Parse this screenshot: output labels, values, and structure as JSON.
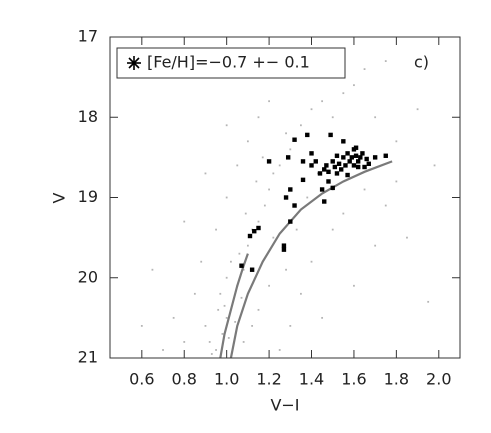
{
  "chart_data": {
    "type": "scatter",
    "xlabel": "V−I",
    "ylabel": "V",
    "annotation": "c)",
    "legend": "upper left",
    "xlim": [
      0.45,
      2.1
    ],
    "ylim": [
      21,
      17
    ],
    "xticks": [
      0.6,
      0.8,
      {
        "value": 1,
        "label": "1.0"
      },
      1.2,
      1.4,
      1.6,
      1.8,
      {
        "value": 2,
        "label": "2.0"
      }
    ],
    "yticks": [
      17,
      18,
      19,
      20,
      21
    ],
    "series": [
      {
        "name": "[Fe/H]=−0.7 +− 0.1",
        "color": "#000000",
        "x": [
          1.2,
          1.29,
          1.32,
          1.38,
          1.4,
          1.36,
          1.3,
          1.28,
          1.32,
          1.3,
          1.27,
          1.27,
          1.13,
          1.15,
          1.11,
          1.07,
          1.12,
          1.46,
          1.49,
          1.55,
          1.57,
          1.61,
          1.7,
          1.65,
          1.6,
          1.42,
          1.44,
          1.46,
          1.47,
          1.48,
          1.5,
          1.51,
          1.52,
          1.53,
          1.54,
          1.55,
          1.56,
          1.57,
          1.58,
          1.59,
          1.61,
          1.62,
          1.63,
          1.64,
          1.66,
          1.67,
          1.62,
          1.52,
          1.48,
          1.4,
          1.36,
          1.75,
          1.5,
          1.45,
          1.6
        ],
        "values": [
          18.55,
          18.5,
          18.28,
          18.22,
          18.6,
          18.78,
          18.9,
          19.0,
          19.1,
          19.3,
          19.6,
          19.65,
          19.42,
          19.38,
          19.48,
          19.85,
          19.9,
          19.05,
          18.22,
          18.3,
          18.45,
          18.38,
          18.5,
          18.62,
          18.6,
          18.55,
          18.7,
          18.65,
          18.6,
          18.68,
          18.55,
          18.62,
          18.7,
          18.58,
          18.65,
          18.5,
          18.6,
          18.72,
          18.55,
          18.5,
          18.48,
          18.55,
          18.5,
          18.45,
          18.52,
          18.58,
          18.62,
          18.48,
          18.8,
          18.45,
          18.55,
          18.48,
          18.88,
          18.9,
          18.4
        ]
      },
      {
        "color": "#b5b5b5",
        "x": [
          0.95,
          0.98,
          0.92,
          1.0,
          0.96,
          1.03,
          0.9,
          1.05,
          1.0,
          1.08,
          1.02,
          1.1,
          1.06,
          1.12,
          1.15,
          1.09,
          1.18,
          1.2,
          1.14,
          1.22,
          1.25,
          1.17,
          1.3,
          1.28,
          1.35,
          1.4,
          1.45,
          1.5,
          1.55,
          1.6,
          1.7,
          1.8,
          1.9,
          1.65,
          1.75,
          1.5,
          1.4,
          1.35,
          1.3,
          1.25,
          1.45,
          1.6,
          1.85,
          1.95,
          0.85,
          0.8,
          0.75,
          0.7,
          0.88,
          0.95,
          1.0,
          1.05,
          1.1,
          1.15,
          1.2,
          1.25,
          1.35,
          1.0,
          0.9,
          0.8,
          0.65,
          0.6,
          1.12,
          1.08,
          1.15,
          1.2,
          1.22,
          1.28,
          1.33,
          1.38,
          1.43,
          1.5,
          1.55,
          1.7,
          1.8,
          1.98,
          1.65,
          1.75,
          0.97,
          1.01,
          0.93,
          1.04,
          0.99,
          1.07
        ],
        "values": [
          20.9,
          20.7,
          20.8,
          20.5,
          20.4,
          20.3,
          20.6,
          20.1,
          20.0,
          19.9,
          19.8,
          19.6,
          19.7,
          19.4,
          19.3,
          19.2,
          19.1,
          18.9,
          18.8,
          18.7,
          18.6,
          18.5,
          18.4,
          18.2,
          18.1,
          17.9,
          17.8,
          18.0,
          17.7,
          17.6,
          18.0,
          18.3,
          17.9,
          18.9,
          19.1,
          19.4,
          19.8,
          20.2,
          20.6,
          20.9,
          20.5,
          20.1,
          19.5,
          20.3,
          20.2,
          20.8,
          20.5,
          20.9,
          19.8,
          19.4,
          19.0,
          18.6,
          18.3,
          18.0,
          17.8,
          17.5,
          17.4,
          18.1,
          18.7,
          19.3,
          19.9,
          20.6,
          20.6,
          20.8,
          20.4,
          20.1,
          19.5,
          19.9,
          19.4,
          19.0,
          18.7,
          18.9,
          19.2,
          19.6,
          18.8,
          18.6,
          17.4,
          17.3,
          20.2,
          20.75,
          20.95,
          20.55,
          20.35,
          20.25
        ]
      }
    ],
    "lines": [
      {
        "color": "#7a7a7a",
        "x": [
          0.97,
          0.99,
          1.02,
          1.05,
          1.08,
          1.1
        ],
        "values": [
          21,
          20.7,
          20.4,
          20.1,
          19.85,
          19.7
        ]
      },
      {
        "color": "#7a7a7a",
        "x": [
          1.02,
          1.05,
          1.1,
          1.17,
          1.25,
          1.35,
          1.45,
          1.55,
          1.65,
          1.78
        ],
        "values": [
          21,
          20.6,
          20.2,
          19.8,
          19.45,
          19.15,
          18.95,
          18.8,
          18.68,
          18.55
        ]
      }
    ]
  }
}
